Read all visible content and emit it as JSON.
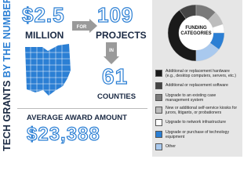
{
  "side_title": {
    "part1": "TECH GRANTS",
    "part2": "BY THE NUMBERS"
  },
  "stats": {
    "amount": "$2.5",
    "amount_unit": "MILLION",
    "arrow1": "FOR",
    "projects": "109",
    "projects_label": "PROJECTS",
    "arrow2": "IN",
    "counties": "61",
    "counties_label": "COUNTIES",
    "average_label": "AVERAGE AWARD AMOUNT",
    "average": "$23,388"
  },
  "chart_data": {
    "type": "pie",
    "title": "FUNDING CATEGORIES",
    "categories": [
      "Additional or replacement hardware (e.g., desktop computers, servers, etc.)",
      "Additional or replacement software",
      "Upgrade to an existing case management system",
      "New or additional self-service kiosks for jurors, litigants, or probationers",
      "Upgrade to network infrastructure",
      "Upgrade or purchase of technology equipment",
      "Other"
    ],
    "values": [
      40,
      10,
      12,
      8,
      5,
      10,
      15
    ],
    "colors": [
      "#1a1a1a",
      "#454545",
      "#7a7a7a",
      "#bdbdbd",
      "#ffffff",
      "#2b7fd4",
      "#a9c9ee"
    ]
  }
}
